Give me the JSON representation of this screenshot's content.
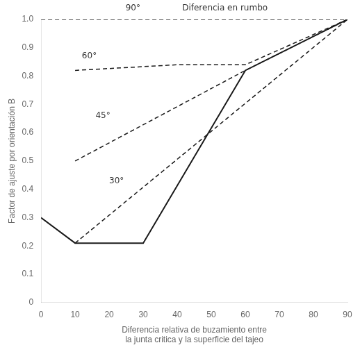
{
  "chart_data": {
    "type": "line",
    "xlabel": "Diferencia relativa de buzamiento entre\nla junta critica y la superficie del tajeo",
    "ylabel": "Factor de ajuste por orientación B",
    "series": [
      {
        "x": [
          0,
          90
        ],
        "values": [
          1.0,
          1.0
        ],
        "color": "#1a1a1a",
        "line_style": "dashed"
      },
      {
        "x": [
          10,
          40,
          60,
          90
        ],
        "values": [
          0.82,
          0.84,
          0.84,
          1.0
        ],
        "color": "#1a1a1a",
        "line_style": "dashed"
      },
      {
        "x": [
          10,
          60,
          90
        ],
        "values": [
          0.5,
          0.82,
          1.0
        ],
        "color": "#1a1a1a",
        "line_style": "dashed"
      },
      {
        "x": [
          10,
          90
        ],
        "values": [
          0.21,
          1.0
        ],
        "color": "#1a1a1a",
        "line_style": "dashed"
      },
      {
        "x": [
          0,
          10,
          30,
          60,
          90
        ],
        "values": [
          0.3,
          0.21,
          0.21,
          0.82,
          1.0
        ],
        "color": "#1a1a1a",
        "line_style": "solid"
      }
    ],
    "xlim": [
      0,
      90
    ],
    "ylim": [
      0,
      1.0
    ],
    "xticks": [
      0,
      10,
      20,
      30,
      40,
      50,
      60,
      70,
      80,
      90
    ],
    "yticks": [
      0,
      0.1,
      0.2,
      0.3,
      0.4,
      0.5,
      0.6,
      0.7,
      0.8,
      0.9,
      {
        "value": 1.0,
        "label": "1.0"
      }
    ],
    "grid": false,
    "annotations": [
      {
        "text": "90°",
        "x": 27,
        "y": 1.025
      },
      {
        "text": "Diferencia en rumbo",
        "x": 54,
        "y": 1.025
      },
      {
        "text": "60°",
        "x": 12,
        "y": 0.855
      },
      {
        "text": "45°",
        "x": 16,
        "y": 0.645
      },
      {
        "text": "30°",
        "x": 20,
        "y": 0.415
      }
    ]
  }
}
